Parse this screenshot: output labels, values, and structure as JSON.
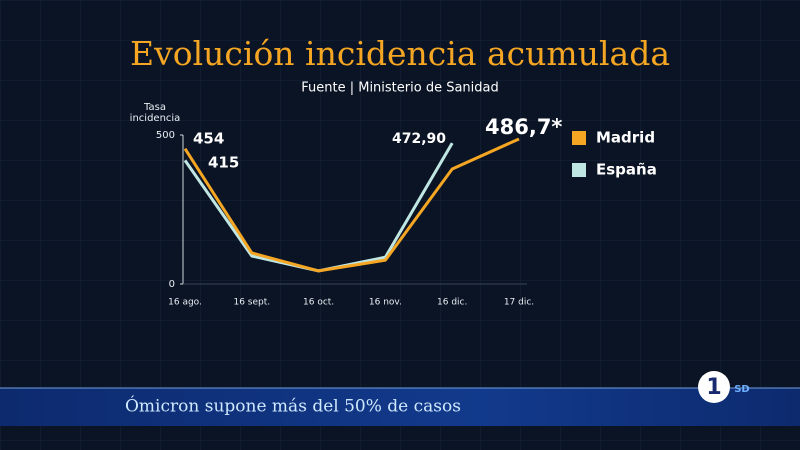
{
  "chart_data": {
    "type": "line",
    "title": "Evolución incidencia acumulada",
    "subtitle": "Fuente | Ministerio de Sanidad",
    "y_label": "Tasa incidencia",
    "categories": [
      "16 ago.",
      "16 sept.",
      "16 oct.",
      "16 nov.",
      "16 dic.",
      "17 dic."
    ],
    "series": [
      {
        "name": "Madrid",
        "color": "#f5a623",
        "values": [
          454,
          104,
          44,
          80,
          386,
          486.7
        ],
        "value_labels": [
          "454",
          null,
          null,
          null,
          null,
          "486,7*"
        ]
      },
      {
        "name": "España",
        "color": "#bfe6e3",
        "values": [
          415,
          94,
          44,
          90,
          472.9,
          null
        ],
        "value_labels": [
          "415",
          null,
          null,
          null,
          "472,90",
          null
        ]
      }
    ],
    "ylim": [
      0,
      500
    ],
    "yticks": [
      0,
      500
    ],
    "legend": "right"
  },
  "ticker": "Ómicron supone más del 50% de casos",
  "channel": {
    "number": "1",
    "label": "SD"
  }
}
